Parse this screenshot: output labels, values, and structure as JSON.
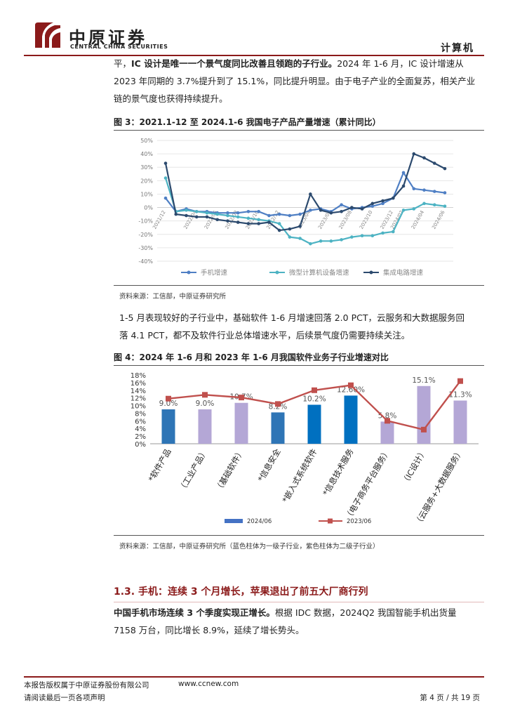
{
  "header": {
    "brand_cn": "中原证券",
    "brand_en": "CENTRAL CHINA SECURITIES",
    "section": "计算机",
    "colors": {
      "brand_red": "#8b1a1a"
    },
    "logo_icon": "zhongyuan-logo-icon"
  },
  "para1": {
    "line1_prefix": "平，",
    "line1_bold": "IC 设计是唯一一个景气度同比改善且领跑的子行业。",
    "line1_rest": "2024 年 1-6 月，IC 设计增速从",
    "line2": "2023 年同期的 3.7%提升到了 15.1%，同比提升明显。由于电子产业的全面复苏，相关产业",
    "line3": "链的景气度也获得持续提升。"
  },
  "figure3": {
    "title": "图 3：2021.1-12 至 2024.1-6 我国电子产品产量增速（累计同比）",
    "source": "资料来源：工信部，中原证券研究所"
  },
  "para2": {
    "line1": "1-5 月表现较好的子行业中，基础软件 1-6 月增速回落 2.0 PCT，云服务和大数据服务回",
    "line2": "落 4.1 PCT，都不及软件行业总体增速水平，后续景气度仍需要持续关注。"
  },
  "figure4": {
    "title": "图 4：2024 年 1-6 月和 2023 年 1-6 月我国软件业务子行业增速对比",
    "source": "资料来源：工信部，中原证券研究所（蓝色柱体为一级子行业，紫色柱体为二级子行业）"
  },
  "section_13": {
    "heading": "1.3. 手机：连续 3 个月增长，苹果退出了前五大厂商行列"
  },
  "para3": {
    "line1_bold": "中国手机市场连续 3 个季度实现正增长。",
    "line1_rest": "根据 IDC 数据，2024Q2 我国智能手机出货量",
    "line2": "7158 万台，同比增长 8.9%，延续了增长势头。"
  },
  "footer": {
    "left1": "本报告版权属于中原证券股份有限公司",
    "url": "www.ccnew.com",
    "left2": "请阅读最后一页各项声明",
    "page": "第 4 页 / 共 19 页"
  },
  "chart_data": [
    {
      "type": "line",
      "title": "",
      "x": [
        "2021/12",
        "2022/02",
        "2022/03",
        "2022/04",
        "2022/05",
        "2022/06",
        "2022/07",
        "2022/08",
        "2022/09",
        "2022/10",
        "2022/11",
        "2022/12",
        "2023/02",
        "2023/03",
        "2023/04",
        "2023/05",
        "2023/06",
        "2023/07",
        "2023/08",
        "2023/09",
        "2023/10",
        "2023/11",
        "2023/12",
        "2024/02",
        "2024/03",
        "2024/04",
        "2024/05",
        "2024/06"
      ],
      "x_tick_labels": [
        "2021/12",
        "2022/04",
        "2022/06",
        "2022/08",
        "2022/10",
        "2022/12",
        "2023/04",
        "2023/06",
        "2023/08",
        "2023/10",
        "2023/12",
        "2024/02",
        "2024/04",
        "2024/06"
      ],
      "ylim": [
        -40,
        50
      ],
      "y_ticks": [
        "50%",
        "40%",
        "30%",
        "20%",
        "10%",
        "0%",
        "-10%",
        "-20%",
        "-30%",
        "-40%"
      ],
      "grid": true,
      "legend_position": "bottom",
      "series": [
        {
          "name": "手机增速",
          "color": "#4f7fc4",
          "values": [
            7,
            -3,
            -1,
            -3,
            -3,
            -4,
            -4,
            -4,
            -3,
            -3,
            -6,
            -5,
            -6,
            -5,
            -2,
            -1,
            -3,
            2,
            -1,
            0,
            1,
            3,
            7,
            26,
            14,
            13,
            12,
            11
          ]
        },
        {
          "name": "微型计算机设备增速",
          "color": "#4db3c3",
          "values": [
            22,
            -3,
            -2,
            -3,
            -4,
            -5,
            -6,
            -7,
            -8,
            -9,
            -10,
            -12,
            -22,
            -23,
            -27,
            -25,
            -25,
            -24,
            -22,
            -21,
            -21,
            -19,
            -18,
            -2,
            -1,
            3,
            2,
            1
          ]
        },
        {
          "name": "集成电路增速",
          "color": "#2c4a6e",
          "values": [
            33,
            -5,
            -6,
            -7,
            -7,
            -9,
            -10,
            -11,
            -12,
            -12,
            -11,
            -17,
            -16,
            -14,
            10,
            -2,
            -4,
            -3,
            0,
            -1,
            3,
            5,
            7,
            16,
            40,
            37,
            33,
            29
          ]
        }
      ]
    },
    {
      "type": "bar",
      "title": "",
      "categories": [
        "*软件产品",
        "（工业产品）",
        "（基础软件）",
        "*信息安全",
        "*嵌入式系统软件",
        "*信息技术服务",
        "（电子商务平台服务）",
        "（IC设计）",
        "（云服务+大数据服务）"
      ],
      "ylim": [
        0,
        18
      ],
      "y_ticks": [
        "18%",
        "16%",
        "14%",
        "12%",
        "10%",
        "8%",
        "6%",
        "4%",
        "2%",
        "0%"
      ],
      "legend_position": "bottom",
      "series": [
        {
          "name": "2024/06",
          "kind": "bar",
          "values": [
            9.0,
            9.0,
            10.7,
            8.2,
            10.2,
            12.6,
            5.8,
            15.1,
            11.3
          ],
          "data_labels": [
            "9.0%",
            "9.0%",
            "10.7%",
            "8.2%",
            "10.2%",
            "12.60%",
            "5.8%",
            "15.1%",
            "11.3%"
          ],
          "level_colors": [
            "#2e75b6",
            "#b4a7d6",
            "#b4a7d6",
            "#2e75b6",
            "#0070c0",
            "#0070c0",
            "#b4a7d6",
            "#b4a7d6",
            "#b4a7d6"
          ]
        },
        {
          "name": "2023/06",
          "kind": "line",
          "color": "#c0504d",
          "values": [
            11.8,
            12.8,
            12.1,
            10.4,
            14.0,
            15.3,
            6.0,
            3.7,
            16.4
          ]
        }
      ],
      "colors": {
        "first_level": "#0070c0",
        "second_level": "#b4a7d6",
        "legend_bar": "#4472c4",
        "line": "#c0504d"
      }
    }
  ]
}
